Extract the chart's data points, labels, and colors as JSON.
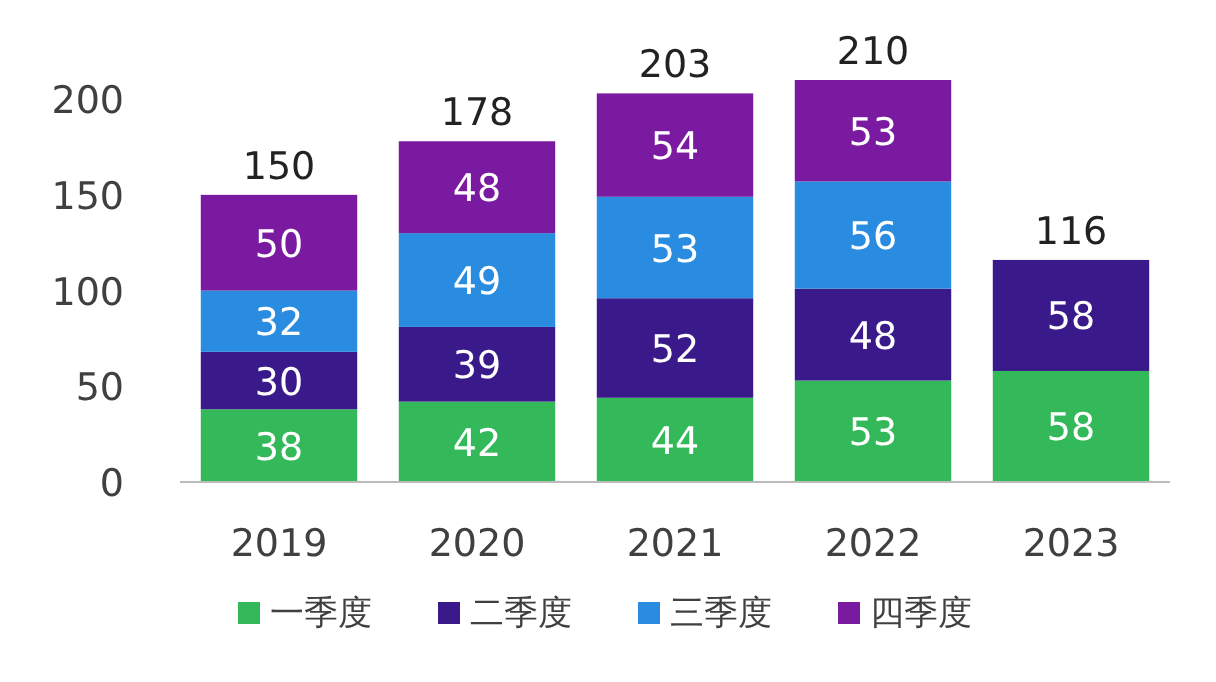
{
  "chart_data": {
    "type": "bar",
    "stacked": true,
    "categories": [
      "2019",
      "2020",
      "2021",
      "2022",
      "2023"
    ],
    "series": [
      {
        "name": "一季度",
        "color": "#33b95a",
        "values": [
          38,
          42,
          44,
          53,
          58
        ]
      },
      {
        "name": "二季度",
        "color": "#3a1a8a",
        "values": [
          30,
          39,
          52,
          48,
          58
        ]
      },
      {
        "name": "三季度",
        "color": "#2a8ce0",
        "values": [
          32,
          49,
          53,
          56,
          null
        ]
      },
      {
        "name": "四季度",
        "color": "#7a1aa0",
        "values": [
          50,
          48,
          54,
          53,
          null
        ]
      }
    ],
    "ylim": [
      0,
      210
    ],
    "yticks": [
      0,
      50,
      100,
      150,
      200
    ],
    "data_labels": true,
    "totals": [
      "150",
      "178",
      "203",
      "210",
      "116"
    ],
    "legend": "bottom",
    "grid": false
  }
}
